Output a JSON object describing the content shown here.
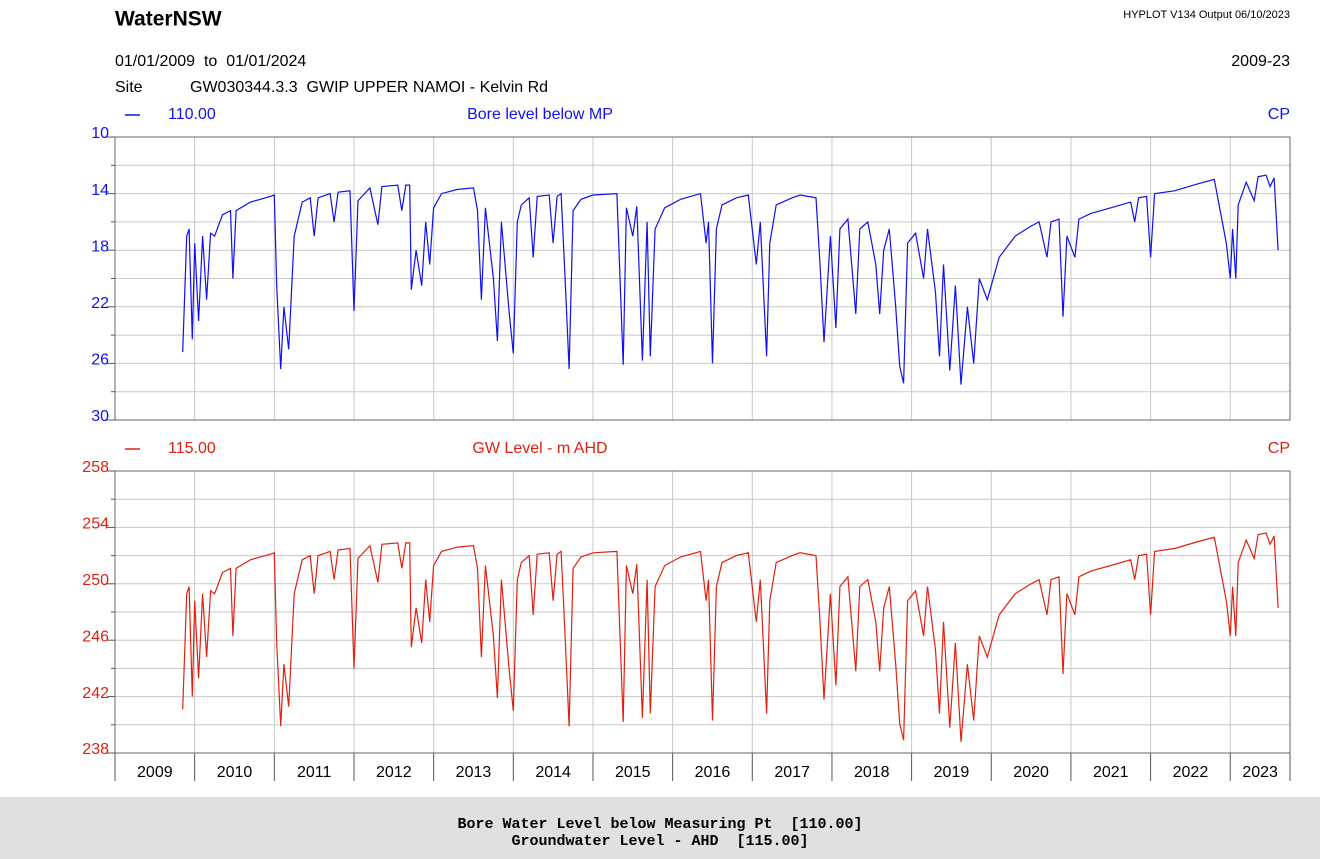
{
  "header": {
    "title": "WaterNSW",
    "version": "HYPLOT V134  Output 06/10/2023",
    "period": "01/01/2009  to  01/01/2024",
    "period_short": "2009-23",
    "site_label": "Site",
    "site": "GW030344.3.3  GWIP UPPER NAMOI - Kelvin Rd"
  },
  "footer": {
    "lines": [
      "Bore Water Level below Measuring Pt  [110.00]",
      "Groundwater Level - AHD  [115.00]"
    ]
  },
  "chart_data": [
    {
      "type": "line",
      "variable": "110.00",
      "right_label": "CP",
      "invert_y": true,
      "ylim": [
        10,
        30
      ],
      "yticks": [
        10,
        14,
        18,
        22,
        26,
        30
      ],
      "yminor": [
        12,
        16,
        20,
        24,
        28
      ],
      "xlim": [
        2009,
        2023.75
      ],
      "xgrid": [
        2010,
        2011,
        2012,
        2013,
        2014,
        2015,
        2016,
        2017,
        2018,
        2019,
        2020,
        2021,
        2022,
        2023
      ],
      "x": [
        2009.85,
        2009.9,
        2009.93,
        2009.97,
        2010.0,
        2010.05,
        2010.1,
        2010.15,
        2010.2,
        2010.25,
        2010.35,
        2010.45,
        2010.48,
        2010.52,
        2010.7,
        2010.95,
        2011.0,
        2011.03,
        2011.08,
        2011.12,
        2011.18,
        2011.25,
        2011.35,
        2011.45,
        2011.5,
        2011.55,
        2011.7,
        2011.75,
        2011.8,
        2011.95,
        2012.0,
        2012.05,
        2012.2,
        2012.3,
        2012.35,
        2012.55,
        2012.6,
        2012.65,
        2012.7,
        2012.72,
        2012.78,
        2012.85,
        2012.9,
        2012.95,
        2013.0,
        2013.1,
        2013.3,
        2013.5,
        2013.55,
        2013.6,
        2013.65,
        2013.75,
        2013.8,
        2013.85,
        2013.95,
        2014.0,
        2014.05,
        2014.1,
        2014.2,
        2014.25,
        2014.3,
        2014.45,
        2014.5,
        2014.55,
        2014.6,
        2014.65,
        2014.7,
        2014.75,
        2014.85,
        2015.0,
        2015.3,
        2015.38,
        2015.42,
        2015.5,
        2015.55,
        2015.62,
        2015.68,
        2015.72,
        2015.78,
        2015.9,
        2016.1,
        2016.35,
        2016.42,
        2016.45,
        2016.5,
        2016.55,
        2016.62,
        2016.8,
        2016.95,
        2017.05,
        2017.1,
        2017.18,
        2017.22,
        2017.3,
        2017.5,
        2017.6,
        2017.8,
        2017.85,
        2017.9,
        2017.98,
        2018.05,
        2018.1,
        2018.2,
        2018.3,
        2018.35,
        2018.45,
        2018.55,
        2018.6,
        2018.65,
        2018.72,
        2018.8,
        2018.85,
        2018.9,
        2018.95,
        2019.05,
        2019.15,
        2019.2,
        2019.3,
        2019.35,
        2019.4,
        2019.48,
        2019.55,
        2019.62,
        2019.7,
        2019.78,
        2019.85,
        2019.95,
        2020.1,
        2020.3,
        2020.5,
        2020.6,
        2020.7,
        2020.75,
        2020.85,
        2020.9,
        2020.95,
        2021.05,
        2021.1,
        2021.25,
        2021.5,
        2021.75,
        2021.8,
        2021.85,
        2021.95,
        2022.0,
        2022.05,
        2022.3,
        2022.6,
        2022.8,
        2022.85,
        2022.9,
        2022.95,
        2023.0,
        2023.03,
        2023.07,
        2023.1,
        2023.2,
        2023.3,
        2023.35,
        2023.45,
        2023.5,
        2023.55,
        2023.6
      ],
      "series": [
        {
          "name": "Bore level below MP",
          "color": "#1010f0",
          "values": [
            25.2,
            17.0,
            16.5,
            24.3,
            17.5,
            23.0,
            17.0,
            21.5,
            16.8,
            17.0,
            15.5,
            15.2,
            20.0,
            15.2,
            14.6,
            14.2,
            14.1,
            20.5,
            26.4,
            22.0,
            25.0,
            17.0,
            14.6,
            14.3,
            17.0,
            14.3,
            14.0,
            16.0,
            13.9,
            13.8,
            22.3,
            14.5,
            13.6,
            16.2,
            13.5,
            13.4,
            15.2,
            13.4,
            13.4,
            20.8,
            18.0,
            20.5,
            16.0,
            19.0,
            15.0,
            14.0,
            13.7,
            13.6,
            15.2,
            21.5,
            15.0,
            20.0,
            24.4,
            16.0,
            22.5,
            25.3,
            16.0,
            14.8,
            14.3,
            18.5,
            14.2,
            14.1,
            17.5,
            14.2,
            14.0,
            20.0,
            26.4,
            15.2,
            14.4,
            14.1,
            14.0,
            26.1,
            15.0,
            17.0,
            14.9,
            25.8,
            16.0,
            25.5,
            16.5,
            15.0,
            14.4,
            14.0,
            17.5,
            16.0,
            26.0,
            16.5,
            14.8,
            14.3,
            14.1,
            19.0,
            16.0,
            25.5,
            17.5,
            14.8,
            14.3,
            14.1,
            14.3,
            19.0,
            24.5,
            17.0,
            23.5,
            16.5,
            15.8,
            22.5,
            16.5,
            16.0,
            19.0,
            22.5,
            18.0,
            16.5,
            22.0,
            26.2,
            27.4,
            17.5,
            16.8,
            20.0,
            16.5,
            21.0,
            25.5,
            19.0,
            26.5,
            20.5,
            27.5,
            22.0,
            26.0,
            20.0,
            21.5,
            18.5,
            17.0,
            16.3,
            16.0,
            18.5,
            16.0,
            15.8,
            22.7,
            17.0,
            18.5,
            15.8,
            15.4,
            15.0,
            14.6,
            16.0,
            14.3,
            14.2,
            18.5,
            14.0,
            13.8,
            13.3,
            13.0,
            14.5,
            16.0,
            17.5,
            20.0,
            16.5,
            20.0,
            14.8,
            13.2,
            14.5,
            12.8,
            12.7,
            13.5,
            12.9,
            18.0
          ]
        }
      ]
    },
    {
      "type": "line",
      "variable": "115.00",
      "right_label": "CP",
      "invert_y": false,
      "ylim": [
        238,
        258
      ],
      "yticks": [
        258,
        254,
        250,
        246,
        242,
        238
      ],
      "yminor": [
        256,
        252,
        248,
        244,
        240
      ],
      "xlim": [
        2009,
        2023.75
      ],
      "xticks": [
        2009,
        2010,
        2011,
        2012,
        2013,
        2014,
        2015,
        2016,
        2017,
        2018,
        2019,
        2020,
        2021,
        2022,
        2023
      ],
      "x": [
        2009.85,
        2009.9,
        2009.93,
        2009.97,
        2010.0,
        2010.05,
        2010.1,
        2010.15,
        2010.2,
        2010.25,
        2010.35,
        2010.45,
        2010.48,
        2010.52,
        2010.7,
        2010.95,
        2011.0,
        2011.03,
        2011.08,
        2011.12,
        2011.18,
        2011.25,
        2011.35,
        2011.45,
        2011.5,
        2011.55,
        2011.7,
        2011.75,
        2011.8,
        2011.95,
        2012.0,
        2012.05,
        2012.2,
        2012.3,
        2012.35,
        2012.55,
        2012.6,
        2012.65,
        2012.7,
        2012.72,
        2012.78,
        2012.85,
        2012.9,
        2012.95,
        2013.0,
        2013.1,
        2013.3,
        2013.5,
        2013.55,
        2013.6,
        2013.65,
        2013.75,
        2013.8,
        2013.85,
        2013.95,
        2014.0,
        2014.05,
        2014.1,
        2014.2,
        2014.25,
        2014.3,
        2014.45,
        2014.5,
        2014.55,
        2014.6,
        2014.65,
        2014.7,
        2014.75,
        2014.85,
        2015.0,
        2015.3,
        2015.38,
        2015.42,
        2015.5,
        2015.55,
        2015.62,
        2015.68,
        2015.72,
        2015.78,
        2015.9,
        2016.1,
        2016.35,
        2016.42,
        2016.45,
        2016.5,
        2016.55,
        2016.62,
        2016.8,
        2016.95,
        2017.05,
        2017.1,
        2017.18,
        2017.22,
        2017.3,
        2017.5,
        2017.6,
        2017.8,
        2017.85,
        2017.9,
        2017.98,
        2018.05,
        2018.1,
        2018.2,
        2018.3,
        2018.35,
        2018.45,
        2018.55,
        2018.6,
        2018.65,
        2018.72,
        2018.8,
        2018.85,
        2018.9,
        2018.95,
        2019.05,
        2019.15,
        2019.2,
        2019.3,
        2019.35,
        2019.4,
        2019.48,
        2019.55,
        2019.62,
        2019.7,
        2019.78,
        2019.85,
        2019.95,
        2020.1,
        2020.3,
        2020.5,
        2020.6,
        2020.7,
        2020.75,
        2020.85,
        2020.9,
        2020.95,
        2021.05,
        2021.1,
        2021.25,
        2021.5,
        2021.75,
        2021.8,
        2021.85,
        2021.95,
        2022.0,
        2022.05,
        2022.3,
        2022.6,
        2022.8,
        2022.85,
        2022.9,
        2022.95,
        2023.0,
        2023.03,
        2023.07,
        2023.1,
        2023.2,
        2023.3,
        2023.35,
        2023.45,
        2023.5,
        2023.55,
        2023.6
      ],
      "series": [
        {
          "name": "GW Level - m AHD",
          "color": "#e02010",
          "values": [
            241.1,
            249.3,
            249.8,
            242.0,
            248.8,
            243.3,
            249.3,
            244.8,
            249.5,
            249.3,
            250.8,
            251.1,
            246.3,
            251.1,
            251.7,
            252.1,
            252.2,
            245.8,
            239.9,
            244.3,
            241.3,
            249.3,
            251.7,
            252.0,
            249.3,
            252.0,
            252.3,
            250.3,
            252.4,
            252.5,
            244.0,
            251.8,
            252.7,
            250.1,
            252.8,
            252.9,
            251.1,
            252.9,
            252.9,
            245.5,
            248.3,
            245.8,
            250.3,
            247.3,
            251.3,
            252.3,
            252.6,
            252.7,
            251.1,
            244.8,
            251.3,
            246.3,
            241.9,
            250.3,
            243.8,
            241.0,
            250.3,
            251.5,
            252.0,
            247.8,
            252.1,
            252.2,
            248.8,
            252.1,
            252.3,
            246.3,
            239.9,
            251.1,
            251.9,
            252.2,
            252.3,
            240.2,
            251.3,
            249.3,
            251.4,
            240.5,
            250.3,
            240.8,
            249.8,
            251.3,
            251.9,
            252.3,
            248.8,
            250.3,
            240.3,
            249.8,
            251.5,
            252.0,
            252.2,
            247.3,
            250.3,
            240.8,
            248.8,
            251.5,
            252.0,
            252.2,
            252.0,
            247.3,
            241.8,
            249.3,
            242.8,
            249.8,
            250.5,
            243.8,
            249.8,
            250.3,
            247.3,
            243.8,
            248.3,
            249.8,
            244.3,
            240.1,
            238.9,
            248.8,
            249.5,
            246.3,
            249.8,
            245.3,
            240.8,
            247.3,
            239.8,
            245.8,
            238.8,
            244.3,
            240.3,
            246.3,
            244.8,
            247.8,
            249.3,
            250.0,
            250.3,
            247.8,
            250.3,
            250.5,
            243.6,
            249.3,
            247.8,
            250.5,
            250.9,
            251.3,
            251.7,
            250.3,
            252.0,
            252.1,
            247.8,
            252.3,
            252.5,
            253.0,
            253.3,
            251.8,
            250.3,
            248.8,
            246.3,
            249.8,
            246.3,
            251.5,
            253.1,
            251.8,
            253.5,
            253.6,
            252.8,
            253.4,
            248.3
          ]
        }
      ]
    }
  ]
}
